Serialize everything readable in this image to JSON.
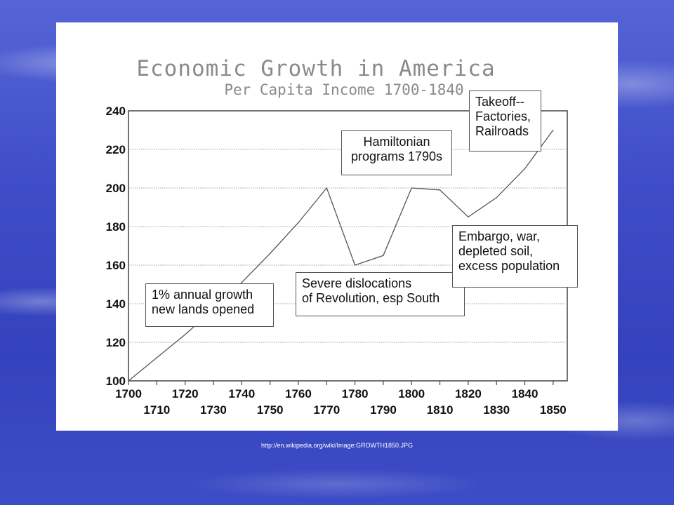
{
  "chart_data": {
    "type": "line",
    "title": "Economic Growth in America",
    "subtitle": "Per Capita Income 1700-1840",
    "xlabel": "",
    "ylabel": "",
    "xlim": [
      1700,
      1855
    ],
    "ylim": [
      100,
      240
    ],
    "x_ticks_upper": [
      "1700",
      "1720",
      "1740",
      "1760",
      "1780",
      "1800",
      "1820",
      "1840"
    ],
    "x_ticks_lower": [
      "1710",
      "1730",
      "1750",
      "1770",
      "1790",
      "1810",
      "1830",
      "1850"
    ],
    "y_ticks": [
      "100",
      "120",
      "140",
      "160",
      "180",
      "200",
      "220",
      "240"
    ],
    "grid": "horizontal",
    "series": [
      {
        "x": [
          1700,
          1710,
          1720,
          1730,
          1740,
          1750,
          1760,
          1770,
          1780,
          1790,
          1800,
          1810,
          1820,
          1830,
          1840,
          1850
        ],
        "values": [
          100,
          112,
          124,
          137,
          151,
          166,
          182,
          200,
          160,
          165,
          200,
          199,
          185,
          195,
          210,
          230
        ]
      }
    ],
    "annotations": [
      {
        "text": "1% annual growth\nnew lands opened"
      },
      {
        "text": "Hamiltonian\nprograms 1790s"
      },
      {
        "text": "Takeoff--\nFactories,\nRailroads"
      },
      {
        "text": "Severe dislocations\nof Revolution, esp South"
      },
      {
        "text": "Embargo, war,\ndepleted soil,\nexcess population"
      }
    ]
  },
  "source_url": "http://en.wikipedia.org/wiki/Image:GROWTH1850.JPG"
}
